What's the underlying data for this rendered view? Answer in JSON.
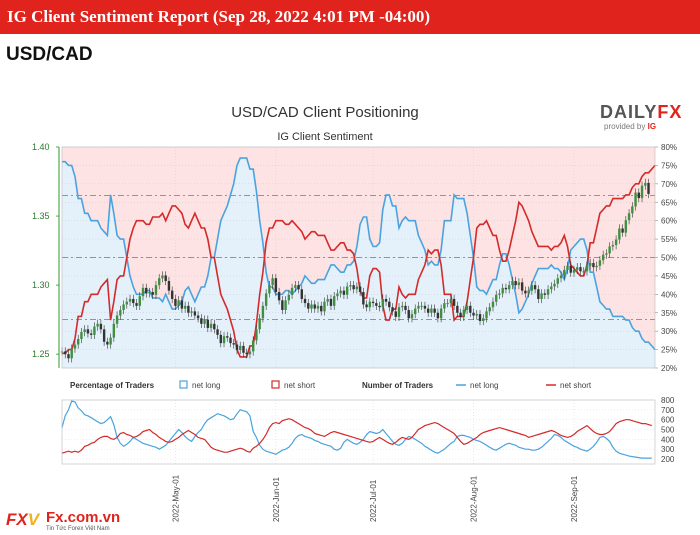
{
  "header": {
    "title": "IG Client Sentiment Report (Sep 28, 2022 4:01 PM -04:00)"
  },
  "pair": "USD/CAD",
  "brand": {
    "name_left": "DAILY",
    "name_right": "FX",
    "provided": "provided by",
    "ig": "IG"
  },
  "footer": {
    "logo_left": "FX",
    "logo_right": "V",
    "site": "Fx.com.vn",
    "tagline": "Tin Tức Forex Việt Nam"
  },
  "colors": {
    "net_long": "#4aa3df",
    "net_short": "#d42a2a",
    "short_zone": "#fde3e3",
    "long_zone": "#e4f1fb",
    "accent": "#e0231c"
  },
  "chart_data": [
    {
      "type": "line",
      "title": "USD/CAD Client Positioning",
      "subtitle": "IG Client Sentiment",
      "y_left": {
        "ticks": [
          1.25,
          1.3,
          1.35,
          1.4
        ],
        "labels": [
          "1.25",
          "1.30",
          "1.35",
          "1.40"
        ],
        "range": [
          1.24,
          1.4
        ]
      },
      "y_right": {
        "ticks": [
          20,
          25,
          30,
          35,
          40,
          45,
          50,
          55,
          60,
          65,
          70,
          75,
          80
        ],
        "labels": [
          "20%",
          "25%",
          "30%",
          "35%",
          "40%",
          "45%",
          "50%",
          "55%",
          "60%",
          "65%",
          "70%",
          "75%",
          "80%"
        ],
        "range": [
          20,
          80
        ]
      },
      "x_ticks": [
        "2022-May-01",
        "2022-Jun-01",
        "2022-Jul-01",
        "2022-Aug-01",
        "2022-Sep-01"
      ],
      "reference_lines": [
        1.365,
        1.32,
        1.275
      ],
      "net_long_pct": [
        76,
        76,
        75,
        75,
        72,
        66,
        66,
        62,
        62,
        60,
        60,
        60,
        58,
        57,
        56,
        67,
        62,
        56,
        55,
        55,
        50,
        45,
        42,
        40,
        40,
        40,
        41,
        41,
        39,
        39,
        39,
        38,
        40,
        38,
        36,
        36,
        37,
        38,
        41,
        42,
        40,
        38,
        40,
        42,
        42,
        45,
        50,
        50,
        55,
        60,
        62,
        64,
        67,
        70,
        75,
        77,
        77,
        77,
        74,
        74,
        68,
        60,
        54,
        46,
        42,
        42,
        40,
        40,
        40,
        41,
        41,
        40,
        41,
        42,
        43,
        45,
        44,
        43,
        43,
        44,
        44,
        44,
        46,
        48,
        48,
        47,
        46,
        46,
        48,
        48,
        49,
        53,
        59,
        61,
        61,
        55,
        53,
        53,
        54,
        63,
        67,
        67,
        64,
        64,
        58,
        60,
        61,
        60,
        60,
        60,
        56,
        54,
        52,
        48,
        49,
        48,
        48,
        52,
        60,
        60,
        60,
        67,
        66,
        66,
        66,
        62,
        56,
        50,
        42,
        41,
        41,
        40,
        42,
        44,
        44,
        48,
        51,
        51,
        48,
        44,
        40,
        35,
        36,
        38,
        40,
        43,
        45,
        47,
        47,
        47,
        47,
        48,
        47,
        47,
        46,
        44,
        47,
        52,
        53,
        54,
        55,
        55,
        52,
        46,
        46,
        42,
        38,
        37,
        36,
        36,
        34,
        34,
        34,
        34,
        33,
        33,
        31,
        30,
        30,
        28,
        27,
        27,
        26,
        25
      ],
      "net_short_pct": [
        24,
        24,
        25,
        25,
        28,
        34,
        34,
        38,
        38,
        40,
        40,
        40,
        42,
        43,
        44,
        33,
        38,
        44,
        45,
        45,
        50,
        55,
        58,
        60,
        60,
        60,
        59,
        59,
        61,
        61,
        61,
        62,
        60,
        62,
        64,
        64,
        63,
        62,
        59,
        58,
        60,
        62,
        60,
        58,
        58,
        55,
        50,
        50,
        45,
        40,
        38,
        36,
        33,
        30,
        25,
        23,
        23,
        23,
        26,
        26,
        32,
        40,
        46,
        54,
        58,
        58,
        60,
        60,
        60,
        59,
        59,
        60,
        59,
        58,
        57,
        55,
        56,
        57,
        57,
        56,
        56,
        56,
        54,
        52,
        52,
        53,
        54,
        54,
        52,
        52,
        51,
        47,
        41,
        39,
        39,
        45,
        47,
        47,
        46,
        37,
        33,
        33,
        36,
        36,
        42,
        40,
        39,
        40,
        40,
        40,
        44,
        46,
        48,
        52,
        51,
        52,
        52,
        48,
        40,
        40,
        40,
        33,
        34,
        34,
        34,
        38,
        44,
        50,
        58,
        59,
        59,
        60,
        58,
        56,
        56,
        52,
        49,
        49,
        52,
        56,
        60,
        65,
        64,
        62,
        60,
        57,
        55,
        53,
        53,
        53,
        53,
        52,
        53,
        53,
        54,
        56,
        53,
        48,
        47,
        46,
        45,
        45,
        48,
        54,
        54,
        58,
        62,
        63,
        64,
        64,
        66,
        66,
        66,
        66,
        67,
        67,
        69,
        70,
        70,
        72,
        73,
        73,
        74,
        75
      ],
      "price_close": [
        1.252,
        1.25,
        1.247,
        1.254,
        1.257,
        1.261,
        1.266,
        1.268,
        1.265,
        1.264,
        1.27,
        1.272,
        1.268,
        1.259,
        1.257,
        1.262,
        1.272,
        1.278,
        1.282,
        1.286,
        1.288,
        1.29,
        1.287,
        1.285,
        1.292,
        1.298,
        1.294,
        1.295,
        1.293,
        1.3,
        1.305,
        1.307,
        1.303,
        1.296,
        1.29,
        1.285,
        1.289,
        1.283,
        1.285,
        1.28,
        1.281,
        1.278,
        1.276,
        1.272,
        1.275,
        1.269,
        1.272,
        1.268,
        1.264,
        1.258,
        1.263,
        1.262,
        1.258,
        1.257,
        1.253,
        1.256,
        1.251,
        1.25,
        1.252,
        1.26,
        1.268,
        1.276,
        1.285,
        1.294,
        1.3,
        1.305,
        1.295,
        1.289,
        1.282,
        1.289,
        1.293,
        1.298,
        1.3,
        1.297,
        1.29,
        1.287,
        1.283,
        1.286,
        1.283,
        1.285,
        1.281,
        1.288,
        1.29,
        1.285,
        1.292,
        1.294,
        1.296,
        1.293,
        1.299,
        1.3,
        1.297,
        1.299,
        1.295,
        1.286,
        1.284,
        1.288,
        1.287,
        1.285,
        1.284,
        1.29,
        1.288,
        1.284,
        1.281,
        1.277,
        1.284,
        1.285,
        1.282,
        1.276,
        1.279,
        1.283,
        1.285,
        1.285,
        1.283,
        1.28,
        1.283,
        1.28,
        1.276,
        1.283,
        1.287,
        1.287,
        1.29,
        1.285,
        1.28,
        1.277,
        1.282,
        1.285,
        1.28,
        1.278,
        1.279,
        1.274,
        1.276,
        1.281,
        1.284,
        1.288,
        1.293,
        1.294,
        1.298,
        1.297,
        1.3,
        1.303,
        1.3,
        1.302,
        1.296,
        1.294,
        1.296,
        1.3,
        1.297,
        1.29,
        1.294,
        1.293,
        1.297,
        1.299,
        1.301,
        1.305,
        1.307,
        1.311,
        1.314,
        1.309,
        1.311,
        1.313,
        1.31,
        1.31,
        1.314,
        1.316,
        1.313,
        1.314,
        1.318,
        1.322,
        1.323,
        1.328,
        1.329,
        1.333,
        1.341,
        1.338,
        1.347,
        1.352,
        1.357,
        1.367,
        1.363,
        1.372,
        1.374,
        1.366
      ],
      "legend": {
        "left_title": "Percentage of Traders",
        "right_title": "Number of Traders",
        "net_long": "net long",
        "net_short": "net short"
      }
    },
    {
      "type": "line",
      "title": "Number of Traders",
      "y_ticks": [
        200,
        300,
        400,
        500,
        600,
        700,
        800
      ],
      "y_labels": [
        "200",
        "300",
        "400",
        "500",
        "600",
        "700",
        "800"
      ],
      "y_range": [
        150,
        800
      ],
      "net_long_count": [
        520,
        640,
        700,
        790,
        780,
        720,
        690,
        650,
        640,
        620,
        600,
        580,
        560,
        570,
        600,
        630,
        550,
        420,
        360,
        330,
        350,
        380,
        420,
        400,
        380,
        360,
        350,
        340,
        330,
        320,
        300,
        320,
        340,
        380,
        420,
        460,
        500,
        470,
        430,
        400,
        380,
        430,
        470,
        500,
        560,
        600,
        620,
        640,
        660,
        650,
        640,
        620,
        600,
        610,
        660,
        700,
        690,
        680,
        640,
        480,
        420,
        340,
        300,
        280,
        270,
        260,
        250,
        270,
        290,
        300,
        320,
        360,
        410,
        440,
        450,
        430,
        420,
        410,
        390,
        380,
        360,
        350,
        340,
        330,
        300,
        290,
        310,
        370,
        400,
        380,
        360,
        350,
        370,
        400,
        450,
        480,
        470,
        460,
        470,
        500,
        460,
        420,
        380,
        350,
        340,
        360,
        400,
        430,
        420,
        400,
        380,
        360,
        330,
        310,
        290,
        270,
        260,
        280,
        300,
        330,
        360,
        380,
        430,
        440,
        440,
        430,
        420,
        400,
        390,
        380,
        360,
        340,
        320,
        300,
        290,
        310,
        330,
        350,
        360,
        350,
        340,
        320,
        310,
        300,
        300,
        290,
        290,
        300,
        320,
        350,
        380,
        410,
        450,
        440,
        420,
        390,
        370,
        350,
        330,
        320,
        300,
        290,
        280,
        300,
        330,
        370,
        420,
        430,
        410,
        380,
        320,
        280,
        260,
        250,
        240,
        230,
        225,
        220,
        215,
        210,
        210,
        210,
        210
      ],
      "net_short_count": [
        260,
        270,
        280,
        270,
        280,
        270,
        290,
        330,
        340,
        360,
        370,
        400,
        420,
        430,
        430,
        410,
        400,
        420,
        460,
        470,
        450,
        440,
        420,
        430,
        450,
        480,
        490,
        500,
        470,
        450,
        420,
        400,
        380,
        370,
        380,
        400,
        420,
        450,
        470,
        490,
        470,
        450,
        420,
        410,
        400,
        360,
        320,
        300,
        290,
        280,
        270,
        270,
        280,
        290,
        300,
        310,
        300,
        280,
        270,
        310,
        330,
        360,
        400,
        450,
        520,
        560,
        570,
        560,
        590,
        600,
        610,
        600,
        580,
        560,
        540,
        520,
        510,
        490,
        460,
        450,
        440,
        430,
        450,
        470,
        480,
        470,
        460,
        450,
        440,
        430,
        420,
        410,
        400,
        390,
        380,
        370,
        380,
        400,
        420,
        400,
        380,
        360,
        350,
        370,
        400,
        420,
        410,
        400,
        420,
        460,
        500,
        520,
        540,
        550,
        560,
        570,
        560,
        540,
        520,
        500,
        480,
        460,
        420,
        380,
        350,
        360,
        380,
        400,
        420,
        450,
        470,
        480,
        490,
        500,
        510,
        520,
        510,
        500,
        490,
        480,
        470,
        460,
        450,
        440,
        420,
        430,
        440,
        450,
        460,
        470,
        480,
        490,
        480,
        460,
        440,
        430,
        420,
        430,
        450,
        480,
        500,
        520,
        540,
        510,
        480,
        460,
        450,
        450,
        460,
        480,
        520,
        560,
        580,
        590,
        600,
        600,
        590,
        580,
        570,
        560,
        560,
        550,
        540
      ]
    }
  ]
}
